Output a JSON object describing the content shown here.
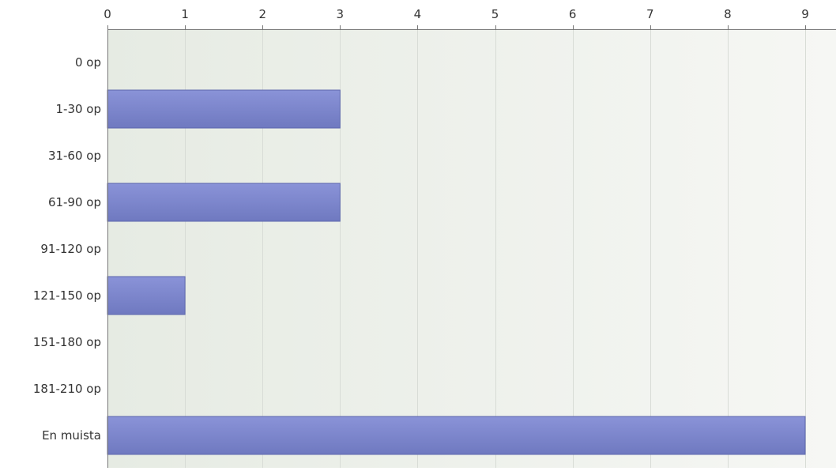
{
  "chart_data": {
    "type": "bar",
    "orientation": "horizontal",
    "categories": [
      "0 op",
      "1-30 op",
      "31-60 op",
      "61-90 op",
      "91-120 op",
      "121-150 op",
      "151-180 op",
      "181-210 op",
      "En muista"
    ],
    "values": [
      0,
      3,
      0,
      3,
      0,
      1,
      0,
      0,
      9
    ],
    "x_ticks": [
      0,
      1,
      2,
      3,
      4,
      5,
      6,
      7,
      8,
      9
    ],
    "xlim": [
      0,
      9.4
    ],
    "x_axis_position": "top",
    "grid": true,
    "legend": "none",
    "title": "",
    "xlabel": "",
    "ylabel": ""
  },
  "colors": {
    "bar_top": "#8a93d8",
    "bar_bottom": "#6f79c0",
    "bar_edge": "#5c66ad",
    "plot_bg_left": "#e6ebe3",
    "plot_bg_right": "#f6f7f4",
    "gridline": "#d8dcd6",
    "axis": "#777777",
    "text": "#333333"
  }
}
